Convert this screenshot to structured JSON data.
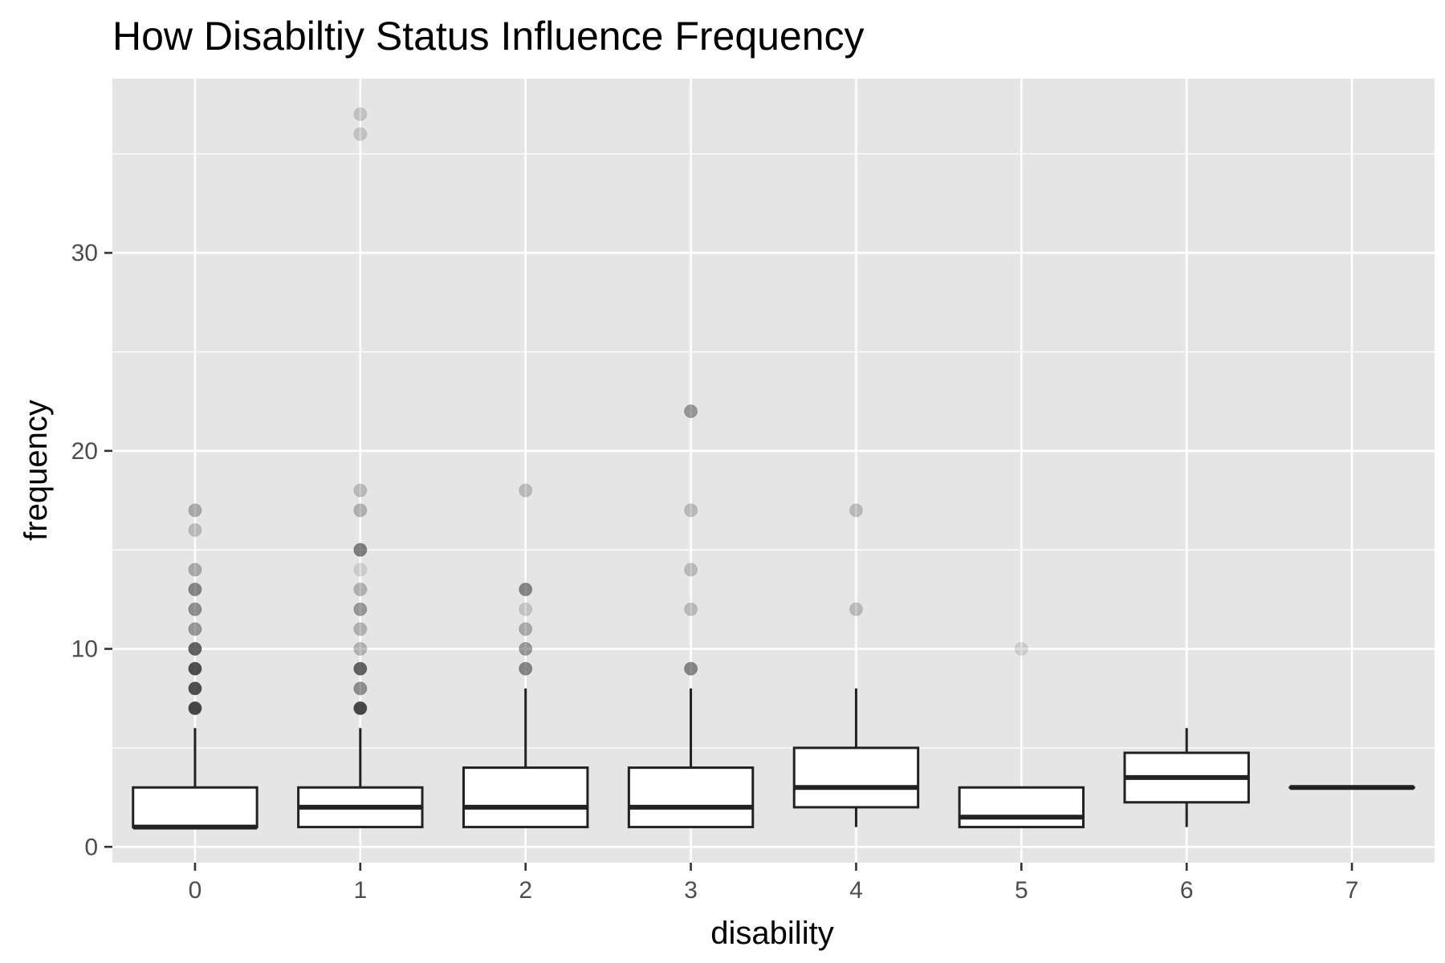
{
  "chart_data": {
    "type": "boxplot",
    "title": "How Disabiltiy Status Influence Frequency",
    "xlabel": "disability",
    "ylabel": "frequency",
    "categories": [
      "0",
      "1",
      "2",
      "3",
      "4",
      "5",
      "6",
      "7"
    ],
    "ylim": [
      -0.8,
      38.8
    ],
    "y_ticks": [
      0,
      10,
      20,
      30
    ],
    "y_tick_labels": [
      "0",
      "10",
      "20",
      "30"
    ],
    "grid": true,
    "legend": "none",
    "colors": {
      "panel_background": "#e5e5e5",
      "grid_line": "#ffffff",
      "box_fill": "#ffffff",
      "box_stroke": "#222222",
      "outlier": "#333333"
    },
    "boxes": [
      {
        "category": "0",
        "whisker_low": 1,
        "q1": 1,
        "median": 1,
        "q3": 3,
        "whisker_high": 6,
        "outliers": [
          {
            "y": 17,
            "opacity": 0.35
          },
          {
            "y": 16,
            "opacity": 0.25
          },
          {
            "y": 14,
            "opacity": 0.35
          },
          {
            "y": 13,
            "opacity": 0.55
          },
          {
            "y": 12,
            "opacity": 0.5
          },
          {
            "y": 11,
            "opacity": 0.45
          },
          {
            "y": 10,
            "opacity": 0.75
          },
          {
            "y": 9,
            "opacity": 0.85
          },
          {
            "y": 8,
            "opacity": 0.85
          },
          {
            "y": 7,
            "opacity": 0.9
          }
        ]
      },
      {
        "category": "1",
        "whisker_low": 1,
        "q1": 1,
        "median": 2,
        "q3": 3,
        "whisker_high": 6,
        "outliers": [
          {
            "y": 37,
            "opacity": 0.2
          },
          {
            "y": 36,
            "opacity": 0.2
          },
          {
            "y": 18,
            "opacity": 0.25
          },
          {
            "y": 17,
            "opacity": 0.3
          },
          {
            "y": 15,
            "opacity": 0.6
          },
          {
            "y": 14,
            "opacity": 0.15
          },
          {
            "y": 13,
            "opacity": 0.3
          },
          {
            "y": 12,
            "opacity": 0.45
          },
          {
            "y": 11,
            "opacity": 0.3
          },
          {
            "y": 10,
            "opacity": 0.3
          },
          {
            "y": 9,
            "opacity": 0.75
          },
          {
            "y": 8,
            "opacity": 0.5
          },
          {
            "y": 7,
            "opacity": 0.9
          }
        ]
      },
      {
        "category": "2",
        "whisker_low": 1,
        "q1": 1,
        "median": 2,
        "q3": 4,
        "whisker_high": 8,
        "outliers": [
          {
            "y": 18,
            "opacity": 0.25
          },
          {
            "y": 13,
            "opacity": 0.55
          },
          {
            "y": 12,
            "opacity": 0.2
          },
          {
            "y": 11,
            "opacity": 0.35
          },
          {
            "y": 10,
            "opacity": 0.45
          },
          {
            "y": 9,
            "opacity": 0.55
          }
        ]
      },
      {
        "category": "3",
        "whisker_low": 1,
        "q1": 1,
        "median": 2,
        "q3": 4,
        "whisker_high": 8,
        "outliers": [
          {
            "y": 22,
            "opacity": 0.45
          },
          {
            "y": 17,
            "opacity": 0.25
          },
          {
            "y": 14,
            "opacity": 0.25
          },
          {
            "y": 12,
            "opacity": 0.25
          },
          {
            "y": 9,
            "opacity": 0.55
          }
        ]
      },
      {
        "category": "4",
        "whisker_low": 1,
        "q1": 2,
        "median": 3,
        "q3": 5,
        "whisker_high": 8,
        "outliers": [
          {
            "y": 17,
            "opacity": 0.25
          },
          {
            "y": 12,
            "opacity": 0.25
          }
        ]
      },
      {
        "category": "5",
        "whisker_low": 1,
        "q1": 1,
        "median": 1.5,
        "q3": 3,
        "whisker_high": 3,
        "outliers": [
          {
            "y": 10,
            "opacity": 0.15
          }
        ]
      },
      {
        "category": "6",
        "whisker_low": 1,
        "q1": 2.25,
        "median": 3.5,
        "q3": 4.75,
        "whisker_high": 6,
        "outliers": []
      },
      {
        "category": "7",
        "whisker_low": 3,
        "q1": 3,
        "median": 3,
        "q3": 3,
        "whisker_high": 3,
        "outliers": []
      }
    ]
  }
}
